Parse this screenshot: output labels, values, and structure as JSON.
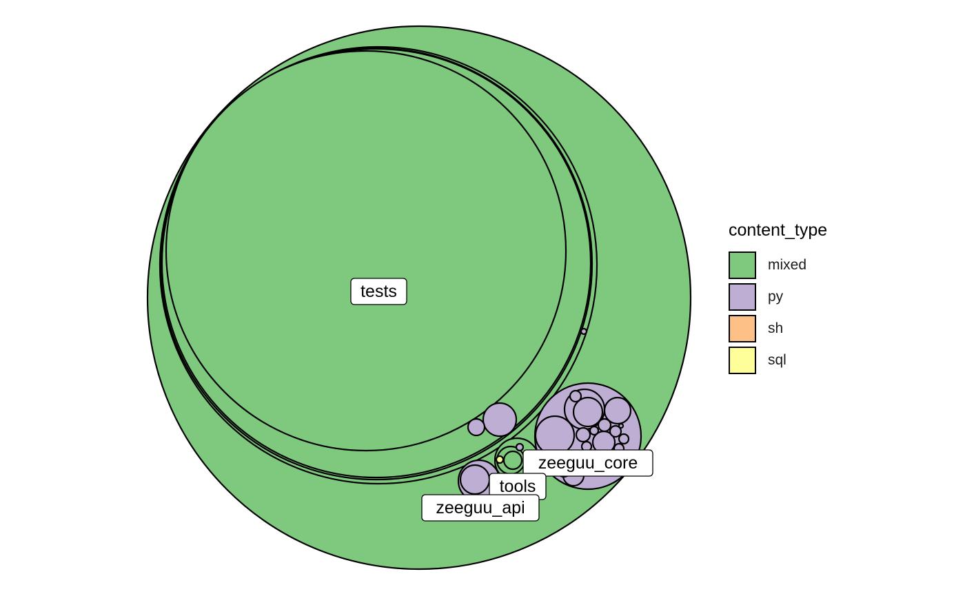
{
  "chart_data": {
    "type": "circle_packing",
    "fill_by": "content_type",
    "legend": {
      "title": "content_type",
      "position": "right",
      "entries": [
        {
          "label": "mixed",
          "color": "#7FC97F"
        },
        {
          "label": "py",
          "color": "#BEAED4"
        },
        {
          "label": "sh",
          "color": "#FDC086"
        },
        {
          "label": "sql",
          "color": "#FFFF99"
        }
      ]
    },
    "labels": [
      {
        "text": "tests"
      },
      {
        "text": "zeeguu_core"
      },
      {
        "text": "tools"
      },
      {
        "text": "zeeguu_api"
      }
    ]
  }
}
